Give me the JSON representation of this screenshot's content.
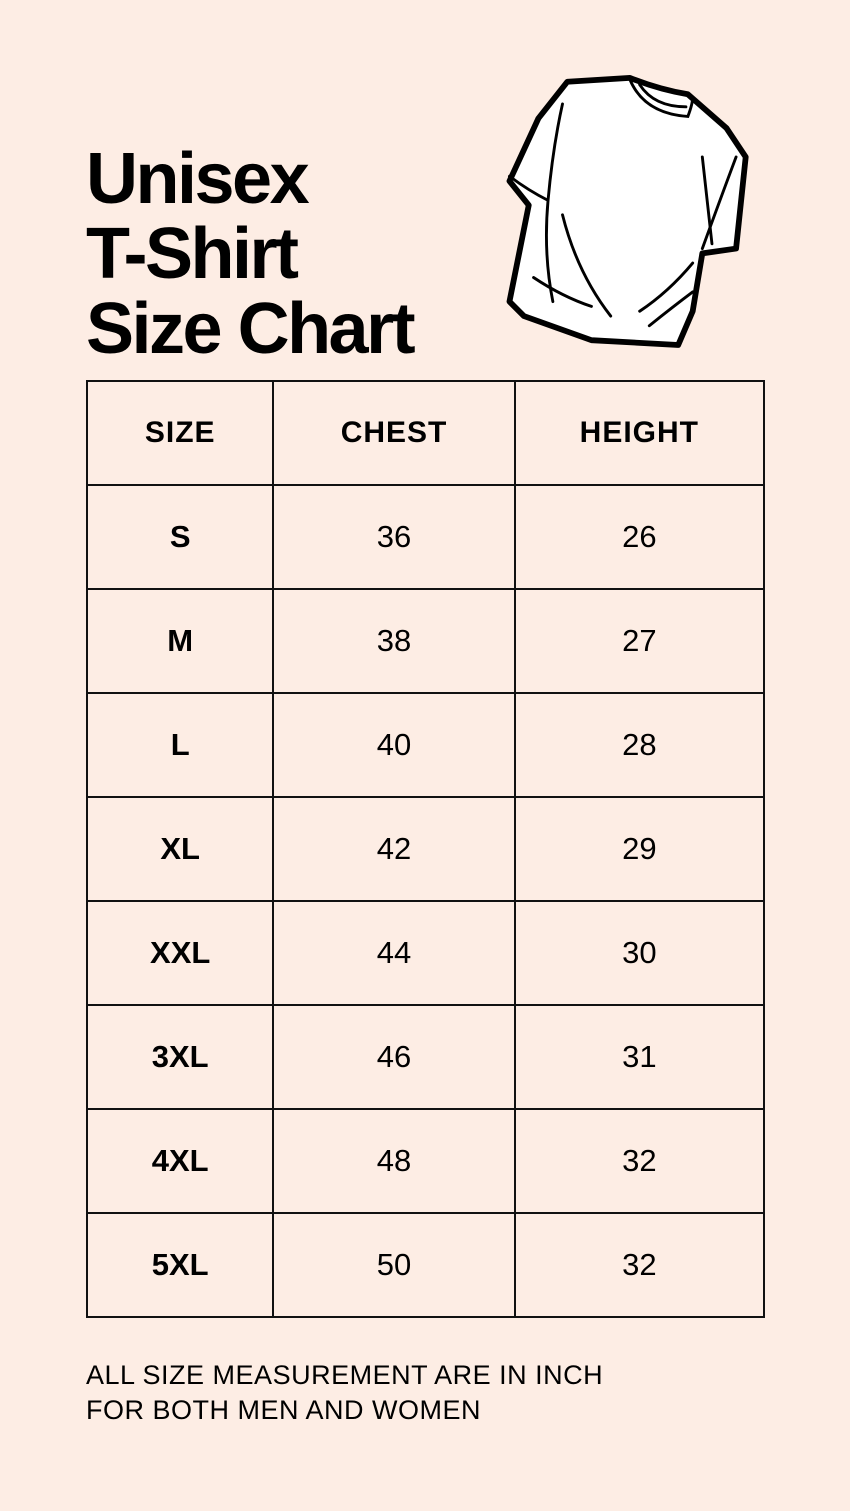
{
  "title": {
    "lines": [
      "Unisex",
      "T-Shirt",
      "Size Chart"
    ]
  },
  "illustration": "t-shirt-icon",
  "table": {
    "headers": [
      "SIZE",
      "CHEST",
      "HEIGHT"
    ],
    "rows": [
      [
        "S",
        "36",
        "26"
      ],
      [
        "M",
        "38",
        "27"
      ],
      [
        "L",
        "40",
        "28"
      ],
      [
        "XL",
        "42",
        "29"
      ],
      [
        "XXL",
        "44",
        "30"
      ],
      [
        "3XL",
        "46",
        "31"
      ],
      [
        "4XL",
        "48",
        "32"
      ],
      [
        "5XL",
        "50",
        "32"
      ]
    ]
  },
  "note": {
    "lines": [
      "ALL SIZE MEASUREMENT ARE IN INCH",
      "FOR BOTH MEN AND WOMEN"
    ]
  },
  "colors": {
    "background": "#fdede4",
    "text": "#000000"
  }
}
